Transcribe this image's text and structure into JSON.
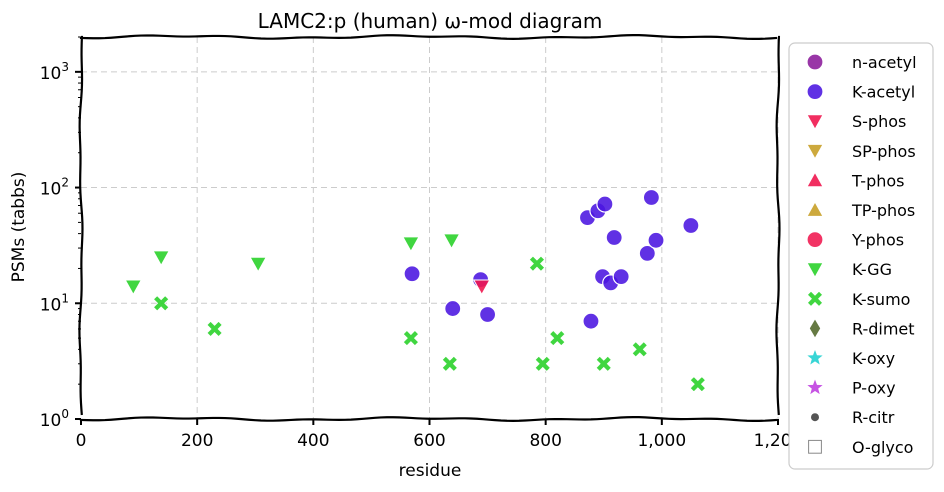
{
  "chart_data": {
    "type": "scatter",
    "title": "LAMC2:p (human) ω-mod diagram",
    "xlabel": "residue",
    "ylabel": "PSMs (tabbs)",
    "xlim": [
      0,
      1200
    ],
    "ylim": [
      1,
      2000
    ],
    "yscale": "log",
    "grid": true,
    "legend_position": "right",
    "x_ticks": [
      "0",
      "200",
      "400",
      "600",
      "800",
      "1,000",
      "1,200"
    ],
    "x_tick_values": [
      0,
      200,
      400,
      600,
      800,
      1000,
      1200
    ],
    "y_ticks": [
      {
        "value": 1,
        "base": "10",
        "exp": "0"
      },
      {
        "value": 10,
        "base": "10",
        "exp": "1"
      },
      {
        "value": 100,
        "base": "10",
        "exp": "2"
      },
      {
        "value": 1000,
        "base": "10",
        "exp": "3"
      }
    ],
    "series": [
      {
        "name": "n-acetyl",
        "marker": "circle",
        "color": "#8b1a9b",
        "points": []
      },
      {
        "name": "K-acetyl",
        "marker": "circle",
        "color": "#4a14e0",
        "points": [
          [
            570,
            18
          ],
          [
            640,
            9
          ],
          [
            688,
            16
          ],
          [
            700,
            8
          ],
          [
            872,
            55
          ],
          [
            878,
            7
          ],
          [
            890,
            63
          ],
          [
            898,
            17
          ],
          [
            902,
            72
          ],
          [
            912,
            15
          ],
          [
            918,
            37
          ],
          [
            930,
            17
          ],
          [
            975,
            27
          ],
          [
            982,
            82
          ],
          [
            990,
            35
          ],
          [
            1050,
            47
          ]
        ]
      },
      {
        "name": "S-phos",
        "marker": "triangle-down",
        "color": "#f0174f",
        "points": [
          [
            690,
            14
          ]
        ]
      },
      {
        "name": "SP-phos",
        "marker": "triangle-down",
        "color": "#c8a028",
        "points": []
      },
      {
        "name": "T-phos",
        "marker": "triangle-up",
        "color": "#f0174f",
        "points": []
      },
      {
        "name": "TP-phos",
        "marker": "triangle-up",
        "color": "#c8a028",
        "points": []
      },
      {
        "name": "Y-phos",
        "marker": "circle",
        "color": "#f0174f",
        "points": []
      },
      {
        "name": "K-GG",
        "marker": "triangle-down",
        "color": "#2bd12b",
        "points": [
          [
            90,
            14
          ],
          [
            138,
            25
          ],
          [
            305,
            22
          ],
          [
            568,
            33
          ],
          [
            638,
            35
          ]
        ]
      },
      {
        "name": "K-sumo",
        "marker": "x",
        "color": "#2bd12b",
        "points": [
          [
            138,
            10
          ],
          [
            230,
            6
          ],
          [
            568,
            5
          ],
          [
            635,
            3
          ],
          [
            785,
            22
          ],
          [
            795,
            3
          ],
          [
            820,
            5
          ],
          [
            900,
            3
          ],
          [
            962,
            4
          ],
          [
            1062,
            2
          ]
        ]
      },
      {
        "name": "R-dimet",
        "marker": "diamond",
        "color": "#556b2f",
        "points": []
      },
      {
        "name": "K-oxy",
        "marker": "star",
        "color": "#22d0d0",
        "points": []
      },
      {
        "name": "P-oxy",
        "marker": "star",
        "color": "#c040e0",
        "points": []
      },
      {
        "name": "R-citr",
        "marker": "dot",
        "color": "#555555",
        "points": []
      },
      {
        "name": "O-glyco",
        "marker": "square-open",
        "color": "#888888",
        "points": []
      }
    ]
  }
}
